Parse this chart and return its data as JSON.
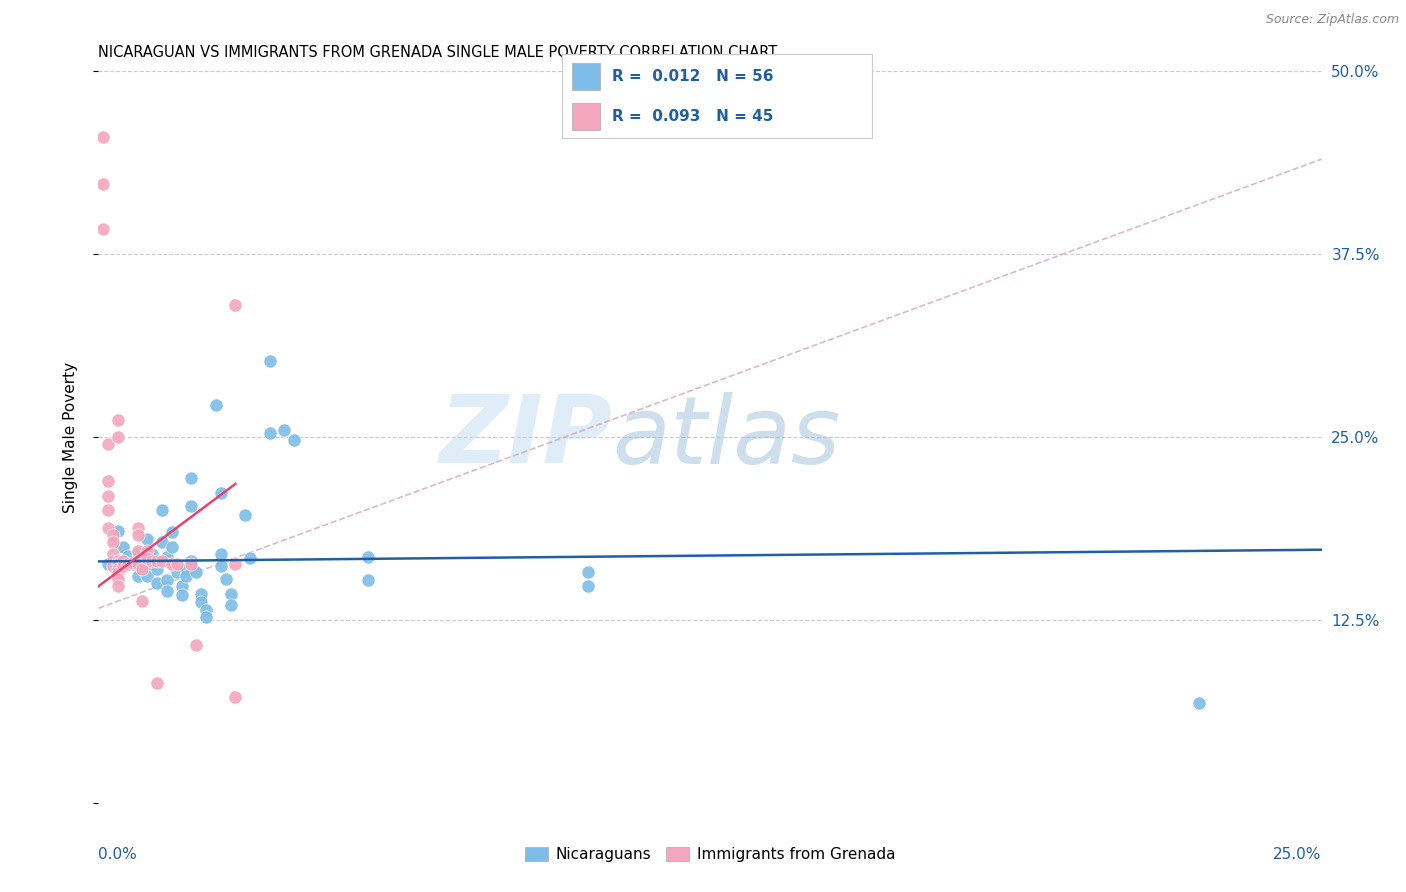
{
  "title": "NICARAGUAN VS IMMIGRANTS FROM GRENADA SINGLE MALE POVERTY CORRELATION CHART",
  "source": "Source: ZipAtlas.com",
  "ylabel": "Single Male Poverty",
  "xlim": [
    0.0,
    0.25
  ],
  "ylim": [
    0.0,
    0.5
  ],
  "yticks": [
    0.0,
    0.125,
    0.25,
    0.375,
    0.5
  ],
  "ytick_labels": [
    "",
    "12.5%",
    "25.0%",
    "37.5%",
    "50.0%"
  ],
  "xticks": [
    0.0,
    0.05,
    0.1,
    0.15,
    0.2,
    0.25
  ],
  "watermark_zip": "ZIP",
  "watermark_atlas": "atlas",
  "legend_text_blue": "R =  0.012   N = 56",
  "legend_text_pink": "R =  0.093   N = 45",
  "legend_label_blue": "Nicaraguans",
  "legend_label_pink": "Immigrants from Grenada",
  "blue_color": "#7dbde8",
  "pink_color": "#f4a6be",
  "blue_line_color": "#1f5fa6",
  "pink_line_color": "#e8426e",
  "dashed_line_color": "#d4a0b0",
  "blue_scatter": [
    [
      0.002,
      0.163
    ],
    [
      0.004,
      0.186
    ],
    [
      0.004,
      0.164
    ],
    [
      0.005,
      0.175
    ],
    [
      0.006,
      0.169
    ],
    [
      0.007,
      0.163
    ],
    [
      0.008,
      0.155
    ],
    [
      0.008,
      0.171
    ],
    [
      0.009,
      0.167
    ],
    [
      0.009,
      0.16
    ],
    [
      0.01,
      0.18
    ],
    [
      0.01,
      0.163
    ],
    [
      0.01,
      0.155
    ],
    [
      0.011,
      0.17
    ],
    [
      0.011,
      0.163
    ],
    [
      0.012,
      0.16
    ],
    [
      0.012,
      0.15
    ],
    [
      0.013,
      0.2
    ],
    [
      0.013,
      0.178
    ],
    [
      0.014,
      0.168
    ],
    [
      0.014,
      0.152
    ],
    [
      0.014,
      0.145
    ],
    [
      0.015,
      0.185
    ],
    [
      0.015,
      0.175
    ],
    [
      0.015,
      0.163
    ],
    [
      0.016,
      0.158
    ],
    [
      0.017,
      0.148
    ],
    [
      0.017,
      0.142
    ],
    [
      0.018,
      0.16
    ],
    [
      0.018,
      0.155
    ],
    [
      0.019,
      0.222
    ],
    [
      0.019,
      0.203
    ],
    [
      0.019,
      0.165
    ],
    [
      0.02,
      0.158
    ],
    [
      0.021,
      0.143
    ],
    [
      0.021,
      0.137
    ],
    [
      0.022,
      0.132
    ],
    [
      0.022,
      0.127
    ],
    [
      0.024,
      0.272
    ],
    [
      0.025,
      0.212
    ],
    [
      0.025,
      0.17
    ],
    [
      0.025,
      0.162
    ],
    [
      0.026,
      0.153
    ],
    [
      0.027,
      0.143
    ],
    [
      0.027,
      0.135
    ],
    [
      0.03,
      0.197
    ],
    [
      0.031,
      0.167
    ],
    [
      0.035,
      0.302
    ],
    [
      0.035,
      0.253
    ],
    [
      0.038,
      0.255
    ],
    [
      0.04,
      0.248
    ],
    [
      0.055,
      0.168
    ],
    [
      0.055,
      0.152
    ],
    [
      0.1,
      0.158
    ],
    [
      0.1,
      0.148
    ],
    [
      0.225,
      0.068
    ]
  ],
  "pink_scatter": [
    [
      0.001,
      0.455
    ],
    [
      0.001,
      0.423
    ],
    [
      0.001,
      0.392
    ],
    [
      0.002,
      0.245
    ],
    [
      0.002,
      0.22
    ],
    [
      0.002,
      0.21
    ],
    [
      0.002,
      0.2
    ],
    [
      0.002,
      0.188
    ],
    [
      0.003,
      0.183
    ],
    [
      0.003,
      0.178
    ],
    [
      0.003,
      0.17
    ],
    [
      0.003,
      0.165
    ],
    [
      0.003,
      0.162
    ],
    [
      0.004,
      0.262
    ],
    [
      0.004,
      0.25
    ],
    [
      0.004,
      0.165
    ],
    [
      0.004,
      0.163
    ],
    [
      0.004,
      0.16
    ],
    [
      0.004,
      0.157
    ],
    [
      0.004,
      0.153
    ],
    [
      0.004,
      0.148
    ],
    [
      0.005,
      0.165
    ],
    [
      0.005,
      0.162
    ],
    [
      0.006,
      0.163
    ],
    [
      0.007,
      0.164
    ],
    [
      0.008,
      0.188
    ],
    [
      0.008,
      0.183
    ],
    [
      0.008,
      0.172
    ],
    [
      0.008,
      0.165
    ],
    [
      0.008,
      0.163
    ],
    [
      0.009,
      0.16
    ],
    [
      0.009,
      0.138
    ],
    [
      0.01,
      0.172
    ],
    [
      0.01,
      0.167
    ],
    [
      0.011,
      0.165
    ],
    [
      0.012,
      0.165
    ],
    [
      0.012,
      0.082
    ],
    [
      0.013,
      0.165
    ],
    [
      0.015,
      0.163
    ],
    [
      0.016,
      0.163
    ],
    [
      0.019,
      0.163
    ],
    [
      0.02,
      0.108
    ],
    [
      0.028,
      0.34
    ],
    [
      0.028,
      0.163
    ],
    [
      0.028,
      0.072
    ]
  ],
  "blue_trend_x": [
    0.0,
    0.25
  ],
  "blue_trend_y": [
    0.165,
    0.173
  ],
  "pink_trend_x": [
    0.0,
    0.028
  ],
  "pink_trend_y": [
    0.148,
    0.218
  ],
  "dashed_trend_x": [
    0.0,
    0.25
  ],
  "dashed_trend_y": [
    0.133,
    0.44
  ]
}
